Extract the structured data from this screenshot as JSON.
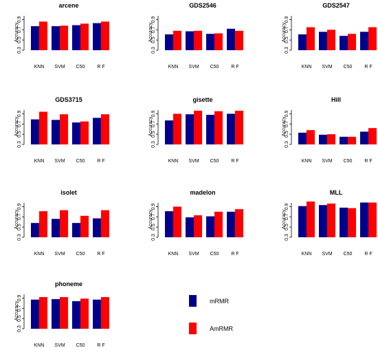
{
  "chart_data": {
    "type": "bar",
    "ylabel": "Accuracy",
    "categories": [
      "KNN",
      "SVM",
      "C50",
      "R F"
    ],
    "yticks": [
      "0.3",
      "0.5",
      "0.7",
      "0.9"
    ],
    "ylim": [
      0.3,
      1.0
    ],
    "colors": {
      "mRMR": "#00008B",
      "AmRMR": "#FF0000"
    },
    "legend": [
      "mRMR",
      "AmRMR"
    ],
    "panels": [
      {
        "title": "arcene",
        "series": [
          {
            "name": "mRMR",
            "values": [
              0.77,
              0.77,
              0.79,
              0.83
            ]
          },
          {
            "name": "AmRMR",
            "values": [
              0.86,
              0.78,
              0.82,
              0.86
            ]
          }
        ]
      },
      {
        "title": "GDS2546",
        "series": [
          {
            "name": "mRMR",
            "values": [
              0.61,
              0.67,
              0.62,
              0.72
            ]
          },
          {
            "name": "AmRMR",
            "values": [
              0.68,
              0.68,
              0.63,
              0.68
            ]
          }
        ]
      },
      {
        "title": "GDS2547",
        "series": [
          {
            "name": "mRMR",
            "values": [
              0.61,
              0.66,
              0.58,
              0.66
            ]
          },
          {
            "name": "AmRMR",
            "values": [
              0.75,
              0.7,
              0.62,
              0.75
            ]
          }
        ]
      },
      {
        "title": "GDS3715",
        "series": [
          {
            "name": "mRMR",
            "values": [
              0.79,
              0.78,
              0.73,
              0.82
            ]
          },
          {
            "name": "AmRMR",
            "values": [
              0.94,
              0.89,
              0.75,
              0.89
            ]
          }
        ]
      },
      {
        "title": "gisette",
        "series": [
          {
            "name": "mRMR",
            "values": [
              0.77,
              0.89,
              0.88,
              0.9
            ]
          },
          {
            "name": "AmRMR",
            "values": [
              0.9,
              0.96,
              0.95,
              0.96
            ]
          }
        ]
      },
      {
        "title": "Hill",
        "series": [
          {
            "name": "mRMR",
            "values": [
              0.53,
              0.49,
              0.45,
              0.55
            ]
          },
          {
            "name": "AmRMR",
            "values": [
              0.58,
              0.5,
              0.45,
              0.62
            ]
          }
        ]
      },
      {
        "title": "isolet",
        "series": [
          {
            "name": "mRMR",
            "values": [
              0.58,
              0.66,
              0.58,
              0.67
            ]
          },
          {
            "name": "AmRMR",
            "values": [
              0.81,
              0.83,
              0.72,
              0.83
            ]
          }
        ]
      },
      {
        "title": "madelon",
        "series": [
          {
            "name": "mRMR",
            "values": [
              0.81,
              0.69,
              0.71,
              0.8
            ]
          },
          {
            "name": "AmRMR",
            "values": [
              0.9,
              0.73,
              0.8,
              0.85
            ]
          }
        ]
      },
      {
        "title": "MLL",
        "series": [
          {
            "name": "mRMR",
            "values": [
              0.91,
              0.93,
              0.88,
              0.98
            ]
          },
          {
            "name": "AmRMR",
            "values": [
              1.0,
              0.96,
              0.87,
              0.98
            ]
          }
        ]
      },
      {
        "title": "phoneme",
        "series": [
          {
            "name": "mRMR",
            "values": [
              0.87,
              0.88,
              0.84,
              0.87
            ]
          },
          {
            "name": "AmRMR",
            "values": [
              0.92,
              0.92,
              0.89,
              0.92
            ]
          }
        ]
      }
    ]
  }
}
